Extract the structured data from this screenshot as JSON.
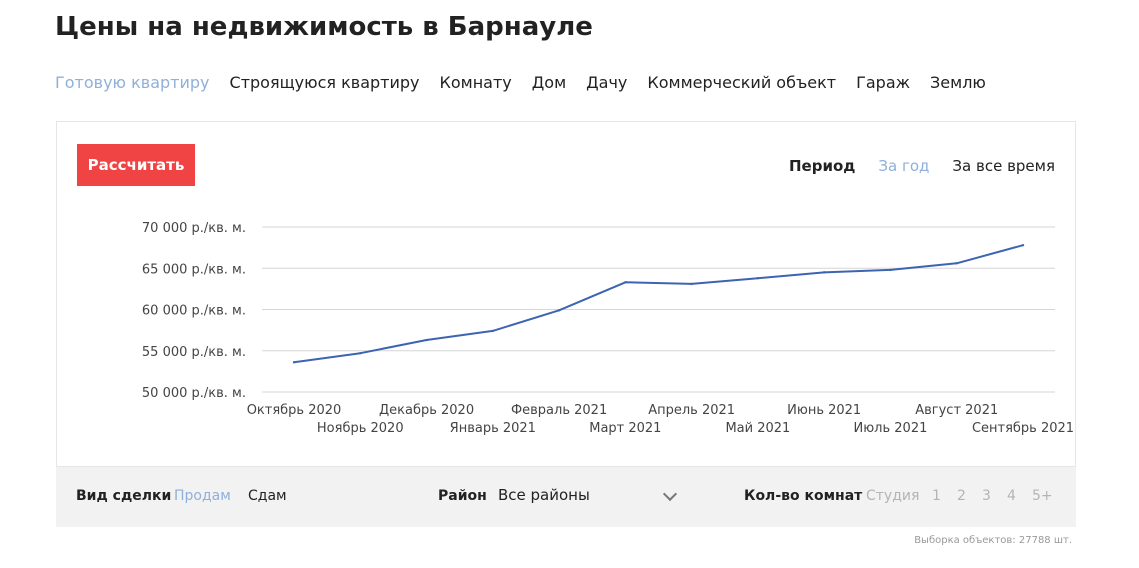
{
  "page": {
    "title": "Цены на недвижимость в Барнауле"
  },
  "property_tabs": [
    {
      "label": "Готовую квартиру",
      "active": true
    },
    {
      "label": "Строящуюся квартиру",
      "active": false
    },
    {
      "label": "Комнату",
      "active": false
    },
    {
      "label": "Дом",
      "active": false
    },
    {
      "label": "Дачу",
      "active": false
    },
    {
      "label": "Коммерческий объект",
      "active": false
    },
    {
      "label": "Гараж",
      "active": false
    },
    {
      "label": "Землю",
      "active": false
    }
  ],
  "calc_button": {
    "label": "Рассчитать"
  },
  "period": {
    "label": "Период",
    "options": [
      "За год",
      "За все время"
    ],
    "selected": "За год"
  },
  "filters": {
    "deal_type": {
      "label": "Вид сделки",
      "options": [
        "Продам",
        "Сдам"
      ],
      "selected": "Продам"
    },
    "district": {
      "label": "Район",
      "value": "Все районы"
    },
    "rooms": {
      "label": "Кол-во комнат",
      "options": [
        "Студия",
        "1",
        "2",
        "3",
        "4",
        "5+"
      ]
    }
  },
  "sample_count": "Выборка объектов: 27788 шт.",
  "colors": {
    "accent": "#f04343",
    "active_link": "#8fb0d9",
    "line": "#3d64b0",
    "grid": "#d6d6d6"
  },
  "chart_data": {
    "type": "line",
    "categories": [
      "Октябрь 2020",
      "Ноябрь 2020",
      "Декабрь 2020",
      "Январь 2021",
      "Февраль 2021",
      "Март 2021",
      "Апрель 2021",
      "Май 2021",
      "Июнь 2021",
      "Июль 2021",
      "Август 2021",
      "Сентябрь 2021"
    ],
    "series": [
      {
        "values": [
          53600,
          54700,
          56300,
          57400,
          59900,
          63300,
          63100,
          63800,
          64500,
          64800,
          65600,
          67800
        ]
      }
    ],
    "y_ticks": [
      50000,
      55000,
      60000,
      65000,
      70000
    ],
    "y_tick_labels": [
      "50 000 р./кв. м.",
      "55 000 р./кв. м.",
      "60 000 р./кв. м.",
      "65 000 р./кв. м.",
      "70 000 р./кв. м."
    ],
    "ylim": [
      50000,
      70000
    ],
    "grid": true,
    "title": "",
    "xlabel": "",
    "ylabel": ""
  }
}
